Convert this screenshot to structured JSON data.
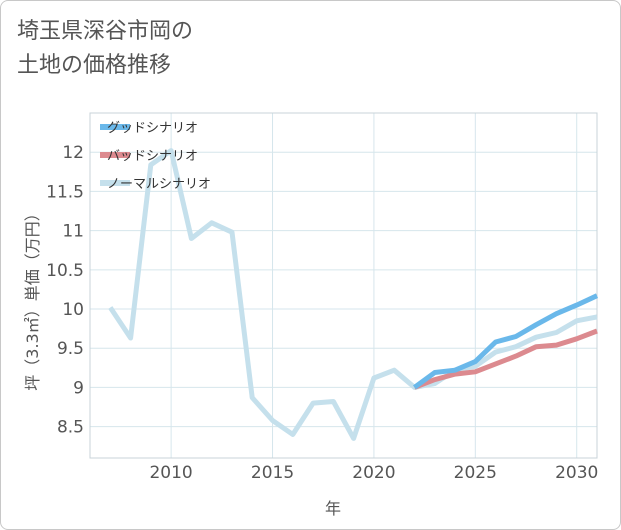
{
  "title_line1": "埼玉県深谷市岡の",
  "title_line2": "土地の価格推移",
  "chart_data": {
    "type": "line",
    "xlabel": "年",
    "ylabel": "坪（3.3㎡）単価（万円）",
    "xlim": [
      2006,
      2031
    ],
    "ylim": [
      8.1,
      12.5
    ],
    "xticks": [
      2010,
      2015,
      2020,
      2025,
      2030
    ],
    "yticks": [
      8.5,
      9,
      9.5,
      10,
      10.5,
      11,
      11.5,
      12
    ],
    "xtick_labels": [
      "2010",
      "2015",
      "2020",
      "2025",
      "2030"
    ],
    "ytick_labels": [
      "8.5",
      "9",
      "9.5",
      "10",
      "10.5",
      "11",
      "11.5",
      "12"
    ],
    "series": [
      {
        "name": "グッドシナリオ",
        "color": "#6ab8ea",
        "x": [
          2022,
          2023,
          2024,
          2025,
          2026,
          2027,
          2028,
          2029,
          2030,
          2031
        ],
        "y": [
          9.0,
          9.19,
          9.22,
          9.33,
          9.58,
          9.65,
          9.8,
          9.94,
          10.05,
          10.17
        ]
      },
      {
        "name": "バッドシナリオ",
        "color": "#dc8a8f",
        "x": [
          2022,
          2023,
          2024,
          2025,
          2026,
          2027,
          2028,
          2029,
          2030,
          2031
        ],
        "y": [
          9.0,
          9.1,
          9.17,
          9.2,
          9.3,
          9.4,
          9.52,
          9.54,
          9.62,
          9.72
        ]
      },
      {
        "name": "ノーマルシナリオ",
        "color": "#c5e0ec",
        "x": [
          2007,
          2008,
          2009,
          2010,
          2011,
          2012,
          2013,
          2014,
          2015,
          2016,
          2017,
          2018,
          2019,
          2020,
          2021,
          2022,
          2023,
          2024,
          2025,
          2026,
          2027,
          2028,
          2029,
          2030,
          2031
        ],
        "y": [
          10.02,
          9.63,
          11.84,
          12.02,
          10.9,
          11.1,
          10.98,
          8.87,
          8.58,
          8.4,
          8.8,
          8.82,
          8.35,
          9.12,
          9.22,
          9.0,
          9.05,
          9.22,
          9.27,
          9.45,
          9.52,
          9.64,
          9.7,
          9.85,
          9.9
        ]
      }
    ]
  }
}
